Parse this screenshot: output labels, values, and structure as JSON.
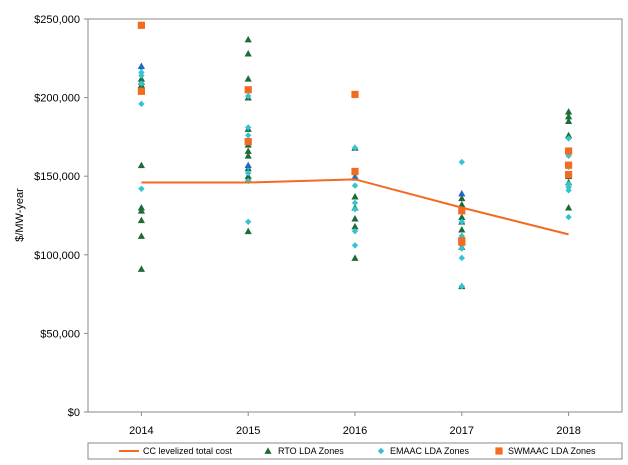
{
  "chart_data": {
    "type": "scatter",
    "title": "",
    "xlabel": "",
    "ylabel": "$/MW-year",
    "x_categories": [
      "2014",
      "2015",
      "2016",
      "2017",
      "2018"
    ],
    "ylim": [
      0,
      250000
    ],
    "y_ticks": [
      0,
      50000,
      100000,
      150000,
      200000,
      250000
    ],
    "y_tick_labels": [
      "$0",
      "$50,000",
      "$100,000",
      "$150,000",
      "$200,000",
      "$250,000"
    ],
    "grid": false,
    "legend_position": "bottom",
    "colors": {
      "cc_line": "#f26b21",
      "rto": "#1e6b3a",
      "emaac": "#35c3cf",
      "swmaac": "#f26b21",
      "rto_blue": "#2266c8"
    },
    "series": [
      {
        "name": "CC levelized total cost",
        "kind": "line",
        "values": [
          146000,
          146000,
          148000,
          130000,
          113000
        ]
      },
      {
        "name": "RTO LDA Zones",
        "kind": "triangle",
        "points": {
          "2014": [
            208000,
            210000,
            212000,
            157000,
            130000,
            128000,
            122000,
            112000,
            91000
          ],
          "2015": [
            237000,
            228000,
            212000,
            200000,
            180000,
            170000,
            166000,
            163000,
            155000,
            150000,
            148000,
            115000
          ],
          "2016": [
            168000,
            150000,
            137000,
            130000,
            123000,
            118000,
            98000
          ],
          "2017": [
            136000,
            132000,
            124000,
            121000,
            116000,
            110000,
            105000,
            80000
          ],
          "2018": [
            191000,
            188000,
            185000,
            176000,
            166000,
            150000,
            146000,
            130000
          ]
        }
      },
      {
        "name": "EMAAC LDA Zones",
        "kind": "diamond",
        "points": {
          "2014": [
            219000,
            216000,
            214000,
            209000,
            196000,
            142000
          ],
          "2015": [
            201000,
            181000,
            176000,
            156000,
            152000,
            147000,
            121000
          ],
          "2016": [
            168000,
            149000,
            144000,
            133000,
            129000,
            115000,
            106000
          ],
          "2017": [
            159000,
            127000,
            121000,
            112000,
            109000,
            104000,
            98000,
            80000
          ],
          "2018": [
            174000,
            163000,
            156000,
            145000,
            143000,
            141000,
            124000
          ]
        }
      },
      {
        "name": "SWMAAC LDA Zones",
        "kind": "square",
        "points": {
          "2014": [
            246000,
            204000
          ],
          "2015": [
            205000,
            172000
          ],
          "2016": [
            202000,
            153000
          ],
          "2017": [
            128000,
            109000,
            108000
          ],
          "2018": [
            166000,
            157000,
            151000
          ]
        }
      }
    ],
    "blue_triangles": {
      "2014": [
        220000
      ],
      "2015": [
        157000
      ],
      "2016": [
        149000
      ],
      "2017": [
        139000
      ],
      "2018": [
        157000
      ]
    }
  }
}
